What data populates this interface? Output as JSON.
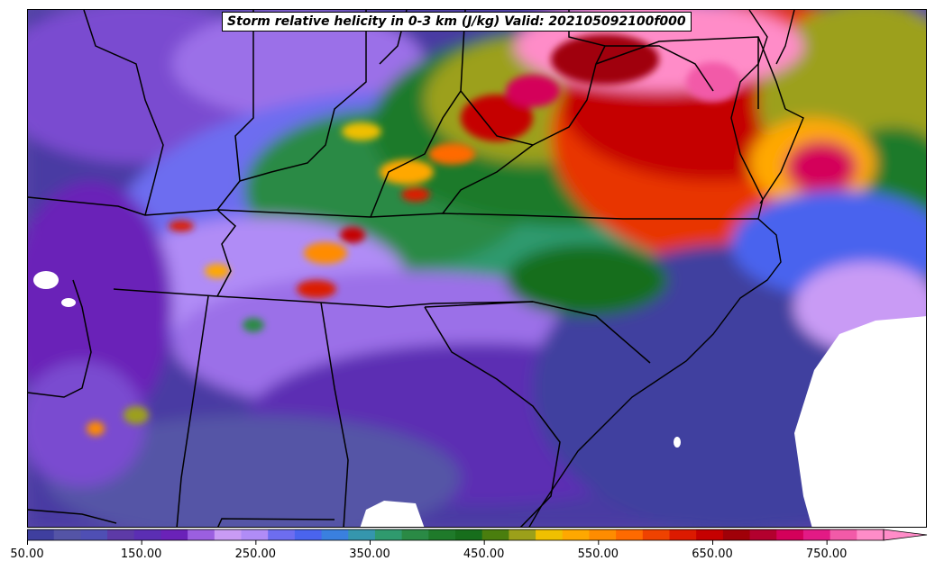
{
  "title": "Storm relative helicity in 0-3 km (J/kg) Valid: 202105092100f000",
  "colorbar": {
    "min": 50,
    "max": 800,
    "step": 25,
    "extend": "max",
    "tick_labels": [
      "50.00",
      "150.00",
      "250.00",
      "350.00",
      "450.00",
      "550.00",
      "650.00",
      "750.00"
    ],
    "tick_values": [
      50,
      150,
      250,
      350,
      450,
      550,
      650,
      750
    ],
    "colors": [
      "#3f3f9f",
      "#5454a6",
      "#4f4fb4",
      "#5d3aa7",
      "#5b2eb3",
      "#6a22b8",
      "#9b5fe0",
      "#c99bf5",
      "#b08cf6",
      "#6d6df0",
      "#4a64ee",
      "#3a80df",
      "#3596ad",
      "#2f9a6e",
      "#2a8a45",
      "#1f7a2a",
      "#176e1c",
      "#4a7e0e",
      "#9ca01a",
      "#f0c000",
      "#ffa800",
      "#ff8c00",
      "#ff6a00",
      "#ef4200",
      "#dc1a00",
      "#c50000",
      "#a00008",
      "#b3002e",
      "#d4005a",
      "#e31a85",
      "#f25aa8",
      "#ff8cc8"
    ]
  }
}
